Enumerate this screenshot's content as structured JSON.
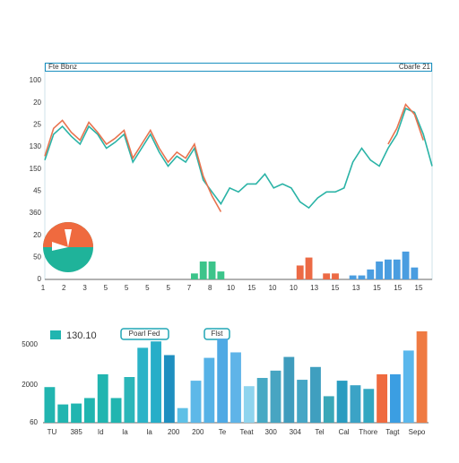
{
  "chart_data": [
    {
      "type": "line",
      "title": "Fte Bbnz",
      "subtitle": "Cbarfe 21",
      "ylim": [
        0,
        100
      ],
      "ylabels": [
        "100",
        "20",
        "25",
        "130",
        "150",
        "45",
        "360",
        "20",
        "50",
        "0"
      ],
      "xlabels": [
        "1",
        "2",
        "3",
        "5",
        "5",
        "5",
        "5",
        "7",
        "8",
        "10",
        "15",
        "10",
        "10",
        "13",
        "15",
        "13",
        "15",
        "15",
        "15"
      ],
      "series": [
        {
          "type": "line",
          "color": "#2ab3a6",
          "values": [
            60,
            73,
            77,
            72,
            68,
            77,
            73,
            66,
            69,
            73,
            59,
            66,
            73,
            64,
            57,
            62,
            59,
            66,
            50,
            44,
            38,
            46,
            44,
            48,
            48,
            53,
            46,
            48,
            46,
            39,
            36,
            41,
            44,
            44,
            46,
            59,
            66,
            60,
            57,
            66,
            73,
            86,
            84,
            73,
            57
          ]
        },
        {
          "type": "line",
          "color": "#e8734f",
          "values": [
            62,
            76,
            80,
            74,
            70,
            79,
            74,
            68,
            71,
            75,
            61,
            68,
            75,
            66,
            59,
            64,
            61,
            68,
            52,
            42,
            34,
            null,
            null,
            null,
            null,
            null,
            null,
            null,
            null,
            null,
            null,
            null,
            null,
            null,
            null,
            null,
            null,
            null,
            null,
            68,
            76,
            88,
            83,
            70,
            null
          ]
        },
        {
          "type": "bar",
          "color": "#3cc48a",
          "values": [
            null,
            null,
            null,
            null,
            null,
            null,
            null,
            null,
            null,
            null,
            null,
            null,
            null,
            null,
            null,
            null,
            null,
            3,
            9,
            9,
            4,
            null,
            null,
            null,
            null,
            null,
            null,
            null,
            null,
            null,
            null,
            null,
            null,
            null,
            null,
            null,
            null,
            null,
            null,
            null,
            null,
            null,
            null,
            null,
            null
          ]
        },
        {
          "type": "bar",
          "color": "#ec6a45",
          "values": [
            null,
            null,
            null,
            null,
            null,
            null,
            null,
            null,
            null,
            null,
            null,
            null,
            null,
            null,
            null,
            null,
            null,
            null,
            null,
            null,
            null,
            null,
            null,
            null,
            null,
            null,
            null,
            null,
            null,
            7,
            11,
            null,
            3,
            3,
            null,
            null,
            null,
            null,
            null,
            null,
            null,
            null,
            null,
            null,
            null
          ]
        },
        {
          "type": "bar",
          "color": "#4a9de0",
          "values": [
            null,
            null,
            null,
            null,
            null,
            null,
            null,
            null,
            null,
            null,
            null,
            null,
            null,
            null,
            null,
            null,
            null,
            null,
            null,
            null,
            null,
            null,
            null,
            null,
            null,
            null,
            null,
            null,
            null,
            null,
            null,
            null,
            null,
            null,
            null,
            2,
            2,
            5,
            9,
            10,
            10,
            14,
            6,
            null,
            null
          ]
        }
      ]
    },
    {
      "type": "bar",
      "badges": [
        "130.10",
        "Poarl Fed",
        "Flst"
      ],
      "ylim": [
        0,
        100
      ],
      "ylabels": [
        "5000",
        "2000",
        "60"
      ],
      "xlabels": [
        "TU",
        "385",
        "Id",
        "Ia",
        "Ia",
        "200",
        "200",
        "Te",
        "Teat",
        "300",
        "304",
        "Tel",
        "Cal",
        "Thore",
        "Tagt",
        "Sepo"
      ],
      "values": [
        39,
        20,
        21,
        27,
        53,
        27,
        50,
        82,
        89,
        74,
        16,
        46,
        71,
        92,
        77,
        40,
        49,
        57,
        72,
        47,
        61,
        29,
        46,
        41,
        37,
        53,
        53,
        79,
        100
      ],
      "colors": [
        "#21b5b0",
        "#21b5b0",
        "#21b5b0",
        "#21b5b0",
        "#21b5b0",
        "#21b5b0",
        "#2bb6b9",
        "#2bb3c7",
        "#27aec8",
        "#1e8fc0",
        "#5ec0e6",
        "#5db8e8",
        "#56b2e6",
        "#4fa9e4",
        "#5fb4e8",
        "#8fd4ee",
        "#47a9c4",
        "#47a5c2",
        "#3f9cbd",
        "#46a6c5",
        "#3f9fbf",
        "#3aa7b8",
        "#2a9cc0",
        "#3ba3c6",
        "#32a7c1",
        "#ef6a3f",
        "#3b9ee2",
        "#5ab7ec",
        "#ef7a42"
      ]
    }
  ]
}
